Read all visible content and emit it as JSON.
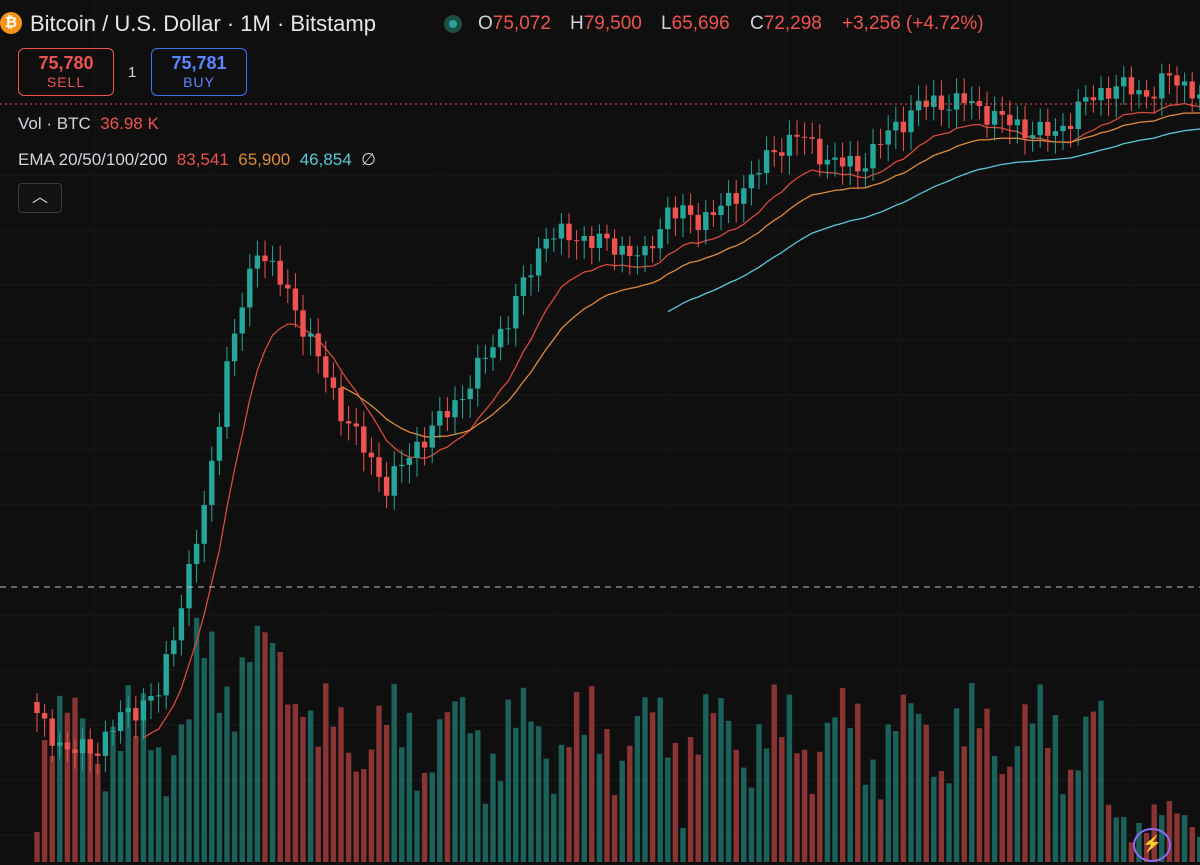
{
  "header": {
    "icon": "bitcoin-icon",
    "title": "Bitcoin / U.S. Dollar · 1M · Bitstamp",
    "open_label": "O",
    "open": "75,072",
    "high_label": "H",
    "high": "79,500",
    "low_label": "L",
    "low": "65,696",
    "close_label": "C",
    "close": "72,298",
    "change": "+3,256 (+4.72%)"
  },
  "trade": {
    "sell_price": "75,780",
    "sell_label": "SELL",
    "spread": "1",
    "buy_price": "75,781",
    "buy_label": "BUY"
  },
  "volume_legend": {
    "label": "Vol · BTC",
    "value": "36.98 K"
  },
  "ema_legend": {
    "label": "EMA 20/50/100/200",
    "ema20": "83,541",
    "ema50": "65,900",
    "ema100": "46,854",
    "ema200": "∅"
  },
  "colors": {
    "up": "#26a69a",
    "down": "#ef5350",
    "ema20": "#d84a3a",
    "ema50": "#e08a3a",
    "ema100": "#5ac8d8",
    "background": "#0f0f0f"
  },
  "chart_data": {
    "type": "candlestick",
    "symbol": "Bitcoin / U.S. Dollar",
    "interval": "1M",
    "exchange": "Bitstamp",
    "trend_anchors": [
      {
        "i": 0,
        "v": 7200
      },
      {
        "i": 4,
        "v": 6200
      },
      {
        "i": 8,
        "v": 6300
      },
      {
        "i": 11,
        "v": 7200
      },
      {
        "i": 16,
        "v": 8000
      },
      {
        "i": 22,
        "v": 18000
      },
      {
        "i": 25,
        "v": 34000
      },
      {
        "i": 29,
        "v": 58000
      },
      {
        "i": 33,
        "v": 47000
      },
      {
        "i": 36,
        "v": 38000
      },
      {
        "i": 40,
        "v": 28000
      },
      {
        "i": 46,
        "v": 20000
      },
      {
        "i": 50,
        "v": 24000
      },
      {
        "i": 56,
        "v": 30000
      },
      {
        "i": 62,
        "v": 42000
      },
      {
        "i": 67,
        "v": 61000
      },
      {
        "i": 72,
        "v": 60000
      },
      {
        "i": 76,
        "v": 58000
      },
      {
        "i": 80,
        "v": 55000
      },
      {
        "i": 83,
        "v": 68000
      },
      {
        "i": 87,
        "v": 65000
      },
      {
        "i": 91,
        "v": 70000
      },
      {
        "i": 97,
        "v": 88000
      },
      {
        "i": 100,
        "v": 95000
      },
      {
        "i": 104,
        "v": 85000
      },
      {
        "i": 108,
        "v": 82000
      },
      {
        "i": 112,
        "v": 95000
      },
      {
        "i": 116,
        "v": 108000
      },
      {
        "i": 122,
        "v": 110000
      },
      {
        "i": 126,
        "v": 103000
      },
      {
        "i": 130,
        "v": 97000
      },
      {
        "i": 134,
        "v": 95000
      },
      {
        "i": 138,
        "v": 110000
      },
      {
        "i": 142,
        "v": 118000
      },
      {
        "i": 146,
        "v": 113000
      },
      {
        "i": 149,
        "v": 122000
      },
      {
        "i": 152,
        "v": 116000
      },
      {
        "i": 155,
        "v": 105000
      }
    ],
    "ema_last": {
      "ema20": 83541,
      "ema50": 65900,
      "ema100": 46854
    },
    "current_price": 75780,
    "price_scale": "log"
  }
}
